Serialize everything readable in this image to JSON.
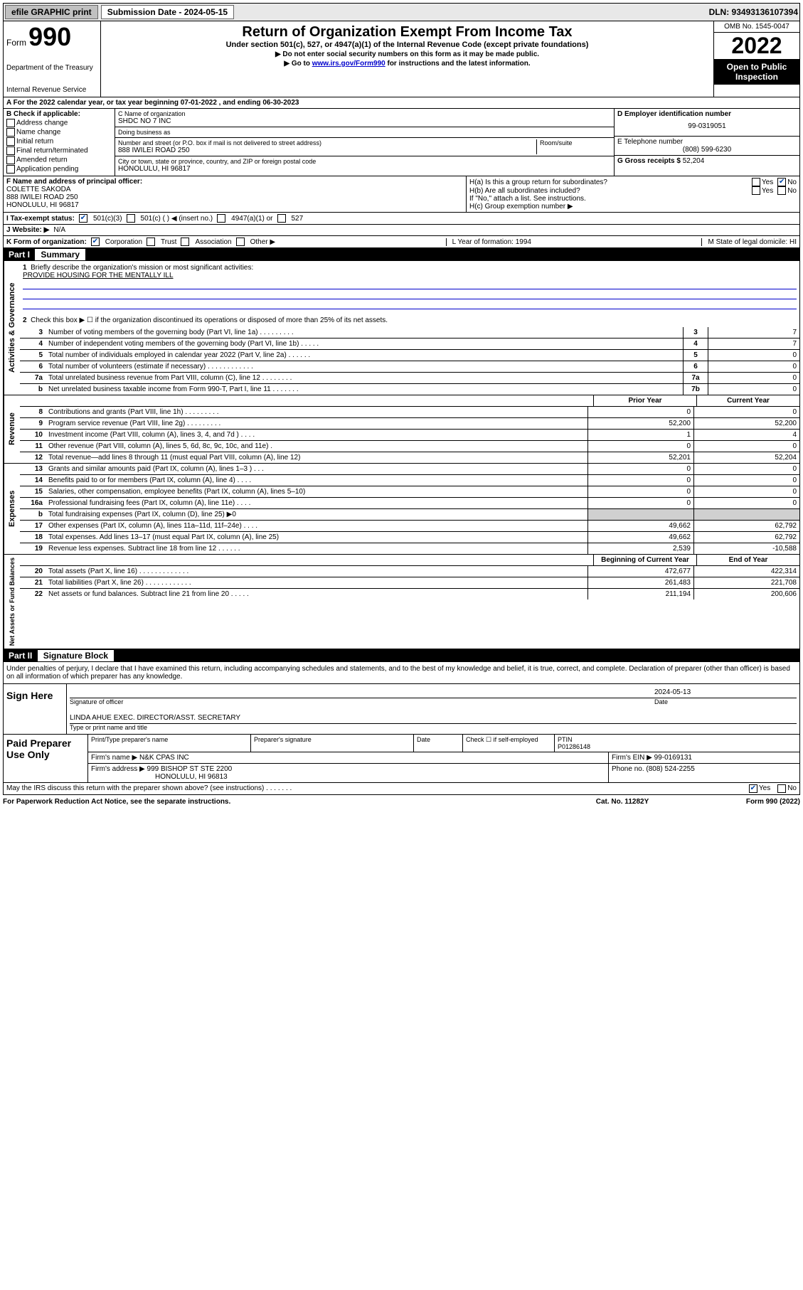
{
  "topbar": {
    "efile": "efile GRAPHIC print",
    "submission_label": "Submission Date - 2024-05-15",
    "dln": "DLN: 93493136107394"
  },
  "header": {
    "form_word": "Form",
    "form_number": "990",
    "dept": "Department of the Treasury",
    "irs": "Internal Revenue Service",
    "title": "Return of Organization Exempt From Income Tax",
    "sub1": "Under section 501(c), 527, or 4947(a)(1) of the Internal Revenue Code (except private foundations)",
    "sub2": "▶ Do not enter social security numbers on this form as it may be made public.",
    "sub3_pre": "▶ Go to ",
    "sub3_link": "www.irs.gov/Form990",
    "sub3_post": " for instructions and the latest information.",
    "omb": "OMB No. 1545-0047",
    "year": "2022",
    "open": "Open to Public Inspection"
  },
  "line_a": "A For the 2022 calendar year, or tax year beginning 07-01-2022   , and ending 06-30-2023",
  "boxB": {
    "label": "B Check if applicable:",
    "opts": [
      "Address change",
      "Name change",
      "Initial return",
      "Final return/terminated",
      "Amended return",
      "Application pending"
    ]
  },
  "boxC": {
    "name_label": "C Name of organization",
    "name": "SHDC NO 7 INC",
    "dba_label": "Doing business as",
    "dba": "",
    "street_label": "Number and street (or P.O. box if mail is not delivered to street address)",
    "room_label": "Room/suite",
    "street": "888 IWILEI ROAD 250",
    "city_label": "City or town, state or province, country, and ZIP or foreign postal code",
    "city": "HONOLULU, HI  96817"
  },
  "boxD": {
    "label": "D Employer identification number",
    "ein": "99-0319051"
  },
  "boxE": {
    "label": "E Telephone number",
    "phone": "(808) 599-6230"
  },
  "boxG": {
    "label": "G Gross receipts $",
    "amount": "52,204"
  },
  "boxF": {
    "label": "F Name and address of principal officer:",
    "name": "COLETTE SAKODA",
    "addr1": "888 IWILEI ROAD 250",
    "addr2": "HONOLULU, HI  96817"
  },
  "boxH": {
    "ha": "H(a)  Is this a group return for subordinates?",
    "ha_yes": "Yes",
    "ha_no": "No",
    "hb": "H(b)  Are all subordinates included?",
    "hb_note": "If \"No,\" attach a list. See instructions.",
    "hc": "H(c)  Group exemption number ▶"
  },
  "status": {
    "label": "I   Tax-exempt status:",
    "o1": "501(c)(3)",
    "o2": "501(c) (   ) ◀ (insert no.)",
    "o3": "4947(a)(1) or",
    "o4": "527"
  },
  "website": {
    "label": "J   Website: ▶",
    "value": "N/A"
  },
  "k": {
    "label": "K Form of organization:",
    "o1": "Corporation",
    "o2": "Trust",
    "o3": "Association",
    "o4": "Other ▶",
    "l": "L Year of formation: 1994",
    "m": "M State of legal domicile: HI"
  },
  "part1": {
    "header": "Part I",
    "title": "Summary"
  },
  "gov": {
    "tab": "Activities & Governance",
    "l1": "Briefly describe the organization's mission or most significant activities:",
    "l1v": "PROVIDE HOUSING FOR THE MENTALLY ILL",
    "l2": "Check this box ▶ ☐  if the organization discontinued its operations or disposed of more than 25% of its net assets.",
    "rows": [
      {
        "n": "3",
        "d": "Number of voting members of the governing body (Part VI, line 1a)  .    .    .    .    .    .    .    .    .",
        "b": "3",
        "v": "7"
      },
      {
        "n": "4",
        "d": "Number of independent voting members of the governing body (Part VI, line 1b)  .    .    .    .    .",
        "b": "4",
        "v": "7"
      },
      {
        "n": "5",
        "d": "Total number of individuals employed in calendar year 2022 (Part V, line 2a)  .    .    .    .    .    .",
        "b": "5",
        "v": "0"
      },
      {
        "n": "6",
        "d": "Total number of volunteers (estimate if necessary)  .    .    .    .    .    .    .    .    .    .    .    .",
        "b": "6",
        "v": "0"
      },
      {
        "n": "7a",
        "d": "Total unrelated business revenue from Part VIII, column (C), line 12  .    .    .    .    .    .    .    .",
        "b": "7a",
        "v": "0"
      },
      {
        "n": "b",
        "d": "Net unrelated business taxable income from Form 990-T, Part I, line 11  .    .    .    .    .    .    .",
        "b": "7b",
        "v": "0"
      }
    ]
  },
  "revhead": {
    "c1": "Prior Year",
    "c2": "Current Year"
  },
  "rev": {
    "tab": "Revenue",
    "rows": [
      {
        "n": "8",
        "d": "Contributions and grants (Part VIII, line 1h)  .    .    .    .    .    .    .    .    .",
        "c1": "0",
        "c2": "0"
      },
      {
        "n": "9",
        "d": "Program service revenue (Part VIII, line 2g)  .    .    .    .    .    .    .    .    .",
        "c1": "52,200",
        "c2": "52,200"
      },
      {
        "n": "10",
        "d": "Investment income (Part VIII, column (A), lines 3, 4, and 7d )  .    .    .    .",
        "c1": "1",
        "c2": "4"
      },
      {
        "n": "11",
        "d": "Other revenue (Part VIII, column (A), lines 5, 6d, 8c, 9c, 10c, and 11e)  .",
        "c1": "0",
        "c2": "0"
      },
      {
        "n": "12",
        "d": "Total revenue—add lines 8 through 11 (must equal Part VIII, column (A), line 12)",
        "c1": "52,201",
        "c2": "52,204"
      }
    ]
  },
  "exp": {
    "tab": "Expenses",
    "rows": [
      {
        "n": "13",
        "d": "Grants and similar amounts paid (Part IX, column (A), lines 1–3 )  .    .    .",
        "c1": "0",
        "c2": "0"
      },
      {
        "n": "14",
        "d": "Benefits paid to or for members (Part IX, column (A), line 4)  .    .    .    .",
        "c1": "0",
        "c2": "0"
      },
      {
        "n": "15",
        "d": "Salaries, other compensation, employee benefits (Part IX, column (A), lines 5–10)",
        "c1": "0",
        "c2": "0"
      },
      {
        "n": "16a",
        "d": "Professional fundraising fees (Part IX, column (A), line 11e)  .    .    .    .",
        "c1": "0",
        "c2": "0"
      },
      {
        "n": "b",
        "d": "Total fundraising expenses (Part IX, column (D), line 25) ▶0",
        "c1": "",
        "c2": "",
        "shade": true
      },
      {
        "n": "17",
        "d": "Other expenses (Part IX, column (A), lines 11a–11d, 11f–24e)  .    .    .    .",
        "c1": "49,662",
        "c2": "62,792"
      },
      {
        "n": "18",
        "d": "Total expenses. Add lines 13–17 (must equal Part IX, column (A), line 25)",
        "c1": "49,662",
        "c2": "62,792"
      },
      {
        "n": "19",
        "d": "Revenue less expenses. Subtract line 18 from line 12  .    .    .    .    .    .",
        "c1": "2,539",
        "c2": "-10,588"
      }
    ]
  },
  "nethead": {
    "c1": "Beginning of Current Year",
    "c2": "End of Year"
  },
  "net": {
    "tab": "Net Assets or Fund Balances",
    "rows": [
      {
        "n": "20",
        "d": "Total assets (Part X, line 16)  .    .    .    .    .    .    .    .    .    .    .    .    .",
        "c1": "472,677",
        "c2": "422,314"
      },
      {
        "n": "21",
        "d": "Total liabilities (Part X, line 26)  .    .    .    .    .    .    .    .    .    .    .    .",
        "c1": "261,483",
        "c2": "221,708"
      },
      {
        "n": "22",
        "d": "Net assets or fund balances. Subtract line 21 from line 20  .    .    .    .    .",
        "c1": "211,194",
        "c2": "200,606"
      }
    ]
  },
  "part2": {
    "header": "Part II",
    "title": "Signature Block"
  },
  "sigtext": "Under penalties of perjury, I declare that I have examined this return, including accompanying schedules and statements, and to the best of my knowledge and belief, it is true, correct, and complete. Declaration of preparer (other than officer) is based on all information of which preparer has any knowledge.",
  "sign": {
    "label": "Sign Here",
    "sig_label": "Signature of officer",
    "date_label": "Date",
    "date": "2024-05-13",
    "name": "LINDA AHUE  EXEC. DIRECTOR/ASST. SECRETARY",
    "name_label": "Type or print name and title"
  },
  "paid": {
    "label": "Paid Preparer Use Only",
    "h1": "Print/Type preparer's name",
    "h2": "Preparer's signature",
    "h3": "Date",
    "h4": "Check ☐ if self-employed",
    "h5": "PTIN",
    "ptin": "P01286148",
    "firm_label": "Firm's name   ▶",
    "firm": "N&K CPAS INC",
    "ein_label": "Firm's EIN ▶",
    "ein": "99-0169131",
    "addr_label": "Firm's address ▶",
    "addr1": "999 BISHOP ST STE 2200",
    "addr2": "HONOLULU, HI  96813",
    "phone_label": "Phone no.",
    "phone": "(808) 524-2255"
  },
  "footer": {
    "may": "May the IRS discuss this return with the preparer shown above? (see instructions)  .    .    .    .    .    .    .",
    "yes": "Yes",
    "no": "No",
    "paperwork": "For Paperwork Reduction Act Notice, see the separate instructions.",
    "cat": "Cat. No. 11282Y",
    "form": "Form 990 (2022)"
  }
}
